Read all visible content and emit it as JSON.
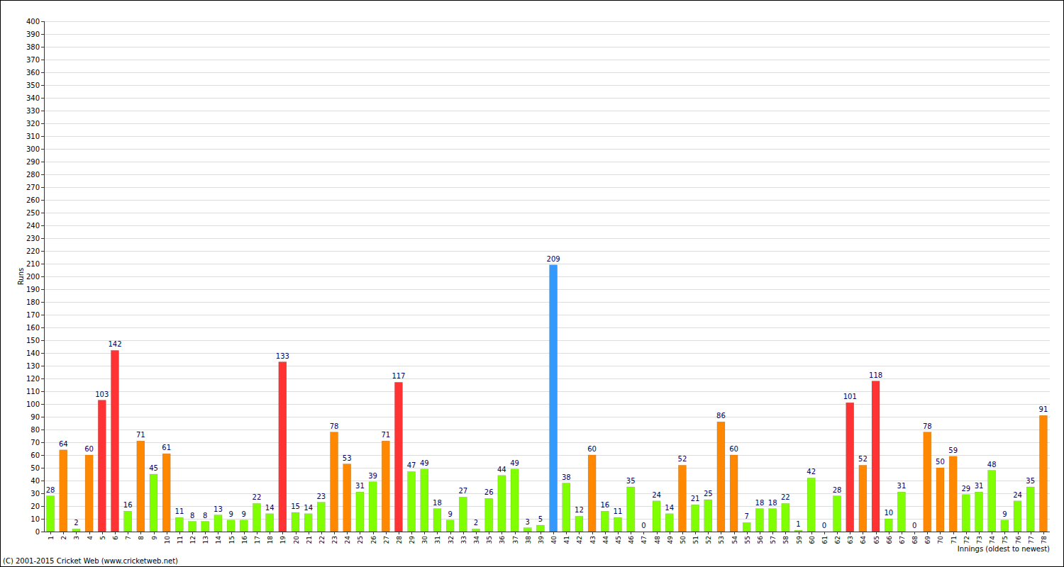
{
  "chart_data": {
    "type": "bar",
    "x_label": "Innings (oldest to newest)",
    "y_label": "Runs",
    "annotations": [
      "(C) 2001-2015 Cricket Web (www.cricketweb.net)"
    ],
    "categories": [
      1,
      2,
      3,
      4,
      5,
      6,
      7,
      8,
      9,
      10,
      11,
      12,
      13,
      14,
      15,
      16,
      17,
      18,
      19,
      20,
      21,
      22,
      23,
      24,
      25,
      26,
      27,
      28,
      29,
      30,
      31,
      32,
      33,
      34,
      35,
      36,
      37,
      38,
      39,
      40,
      41,
      42,
      43,
      44,
      45,
      46,
      47,
      48,
      49,
      50,
      51,
      52,
      53,
      54,
      55,
      56,
      57,
      58,
      59,
      60,
      61,
      62,
      63,
      64,
      65,
      66,
      67,
      68,
      69,
      70,
      71,
      72,
      73,
      74,
      75,
      76,
      77,
      78
    ],
    "values": [
      28,
      64,
      2,
      60,
      103,
      142,
      16,
      71,
      45,
      61,
      11,
      8,
      8,
      13,
      9,
      9,
      22,
      14,
      133,
      15,
      14,
      23,
      78,
      53,
      31,
      39,
      71,
      117,
      47,
      49,
      18,
      9,
      27,
      2,
      26,
      44,
      49,
      3,
      5,
      209,
      38,
      12,
      60,
      16,
      11,
      35,
      0,
      24,
      14,
      52,
      21,
      25,
      86,
      60,
      7,
      18,
      18,
      22,
      1,
      42,
      0,
      28,
      101,
      52,
      118,
      10,
      31,
      0,
      78,
      50,
      59,
      29,
      31,
      48,
      9,
      24,
      35,
      91
    ],
    "colors": [
      "#80ff00",
      "#ff8800",
      "#80ff00",
      "#ff8800",
      "#ff3333",
      "#ff3333",
      "#80ff00",
      "#ff8800",
      "#80ff00",
      "#ff8800",
      "#80ff00",
      "#80ff00",
      "#80ff00",
      "#80ff00",
      "#80ff00",
      "#80ff00",
      "#80ff00",
      "#80ff00",
      "#ff3333",
      "#80ff00",
      "#80ff00",
      "#80ff00",
      "#ff8800",
      "#ff8800",
      "#80ff00",
      "#80ff00",
      "#ff8800",
      "#ff3333",
      "#80ff00",
      "#80ff00",
      "#80ff00",
      "#80ff00",
      "#80ff00",
      "#80ff00",
      "#80ff00",
      "#80ff00",
      "#80ff00",
      "#80ff00",
      "#80ff00",
      "#3399ff",
      "#80ff00",
      "#80ff00",
      "#ff8800",
      "#80ff00",
      "#80ff00",
      "#80ff00",
      "#80ff00",
      "#80ff00",
      "#80ff00",
      "#ff8800",
      "#80ff00",
      "#80ff00",
      "#ff8800",
      "#ff8800",
      "#80ff00",
      "#80ff00",
      "#80ff00",
      "#80ff00",
      "#80ff00",
      "#80ff00",
      "#80ff00",
      "#80ff00",
      "#ff3333",
      "#ff8800",
      "#ff3333",
      "#80ff00",
      "#80ff00",
      "#80ff00",
      "#ff8800",
      "#ff8800",
      "#ff8800",
      "#80ff00",
      "#80ff00",
      "#80ff00",
      "#80ff00",
      "#80ff00",
      "#80ff00",
      "#ff8800"
    ],
    "ylim": [
      0,
      400
    ],
    "yticks": [
      0,
      10,
      20,
      30,
      40,
      50,
      60,
      70,
      80,
      90,
      100,
      110,
      120,
      130,
      140,
      150,
      160,
      170,
      180,
      190,
      200,
      210,
      220,
      230,
      240,
      250,
      260,
      270,
      280,
      290,
      300,
      310,
      320,
      330,
      340,
      350,
      360,
      370,
      380,
      390,
      400
    ],
    "grid": true,
    "data_labels": true
  }
}
